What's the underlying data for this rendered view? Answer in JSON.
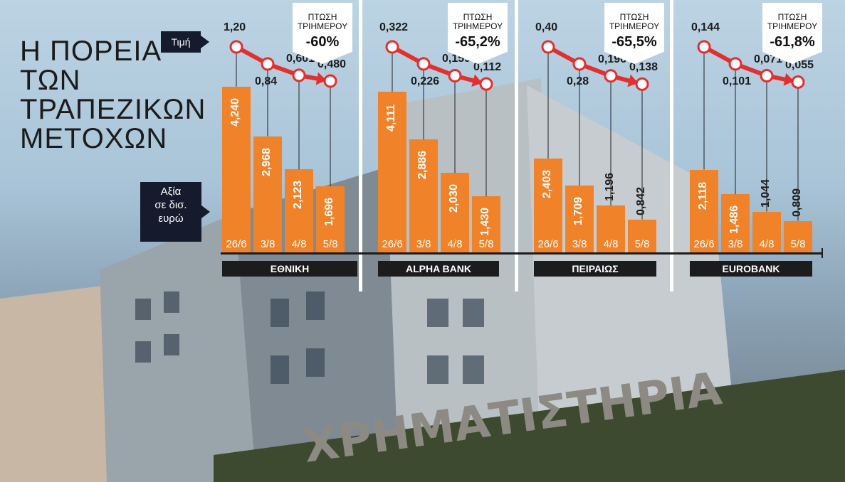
{
  "title_lines": [
    "Η ΠΟΡΕΙΑ",
    "ΤΩΝ",
    "ΤΡΑΠΕΖΙΚΩΝ",
    "ΜΕΤΟΧΩΝ"
  ],
  "legend": {
    "price_label": "Τιμή",
    "value_label_lines": [
      "Αξία",
      "σε δισ.",
      "ευρώ"
    ]
  },
  "drop_label_lines": [
    "ΠΤΩΣΗ",
    "ΤΡΙΗΜΕΡΟΥ"
  ],
  "building_text": "ΧΡΗΜΑΤΙΣΤΗΡΙΑ",
  "chart_data": {
    "type": "bar",
    "categories": [
      "26/6",
      "3/8",
      "4/8",
      "5/8"
    ],
    "title": "Η ΠΟΡΕΙΑ ΤΩΝ ΤΡΑΠΕΖΙΚΩΝ ΜΕΤΟΧΩΝ",
    "ylabel": "Αξία σε δισ. ευρώ",
    "line_series_label": "Τιμή",
    "banks": [
      {
        "name": "ΕΘΝΙΚΗ",
        "values": [
          4.24,
          2.968,
          2.123,
          1.696
        ],
        "value_labels": [
          "4,240",
          "2,968",
          "2,123",
          "1,696"
        ],
        "prices": [
          1.2,
          0.84,
          0.601,
          0.48
        ],
        "price_labels": [
          "1,20",
          "0,84",
          "0,601",
          "0,480"
        ],
        "drop": "-60%"
      },
      {
        "name": "ALPHA BANK",
        "values": [
          4.111,
          2.886,
          2.03,
          1.43
        ],
        "value_labels": [
          "4,111",
          "2,886",
          "2,030",
          "1,430"
        ],
        "prices": [
          0.322,
          0.226,
          0.159,
          0.112
        ],
        "price_labels": [
          "0,322",
          "0,226",
          "0,159",
          "0,112"
        ],
        "drop": "-65,2%"
      },
      {
        "name": "ΠΕΙΡΑΙΩΣ",
        "values": [
          2.403,
          1.709,
          1.196,
          0.842
        ],
        "value_labels": [
          "2,403",
          "1,709",
          "1,196",
          "0,842"
        ],
        "prices": [
          0.4,
          0.28,
          0.196,
          0.138
        ],
        "price_labels": [
          "0,40",
          "0,28",
          "0,196",
          "0,138"
        ],
        "drop": "-65,5%"
      },
      {
        "name": "EUROBANK",
        "values": [
          2.118,
          1.486,
          1.044,
          0.809
        ],
        "value_labels": [
          "2,118",
          "1,486",
          "1,044",
          "0,809"
        ],
        "prices": [
          0.144,
          0.101,
          0.071,
          0.055
        ],
        "price_labels": [
          "0,144",
          "0,101",
          "0,071",
          "0,055"
        ],
        "drop": "-61,8%"
      }
    ]
  }
}
